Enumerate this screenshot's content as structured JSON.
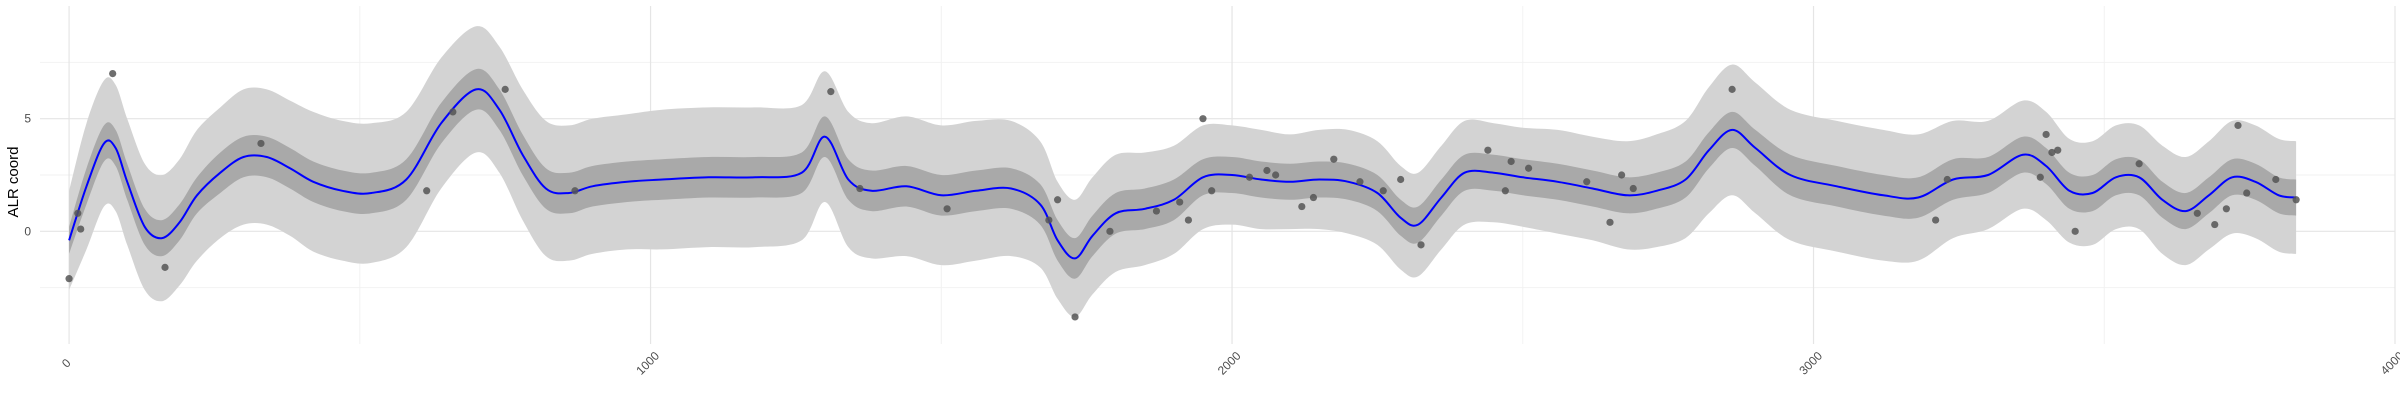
{
  "chart_data": {
    "type": "line",
    "title": "",
    "xlabel": "",
    "ylabel": "ALR coord",
    "xlim": [
      -50,
      4000
    ],
    "ylim": [
      -5,
      10
    ],
    "x_ticks": [
      0,
      1000,
      2000,
      3000,
      4000
    ],
    "x_tick_labels": [
      "0",
      "1000",
      "2000",
      "3000",
      "4000"
    ],
    "y_ticks": [
      0,
      5
    ],
    "y_tick_labels": [
      "0",
      "5"
    ],
    "grid": true,
    "colors": {
      "line": "#0000ff",
      "inner_band": "#a9a9a9",
      "outer_band": "#d3d3d3",
      "points": "#555555",
      "grid_major": "#e5e5e5",
      "grid_minor": "#f2f2f2"
    },
    "series": [
      {
        "kind": "mean",
        "x": [
          0,
          30,
          60,
          80,
          100,
          130,
          160,
          190,
          220,
          260,
          300,
          340,
          380,
          420,
          470,
          520,
          580,
          640,
          700,
          740,
          780,
          820,
          860,
          900,
          960,
          1020,
          1100,
          1180,
          1260,
          1300,
          1340,
          1380,
          1440,
          1500,
          1560,
          1620,
          1670,
          1700,
          1730,
          1760,
          1800,
          1850,
          1900,
          1950,
          2000,
          2050,
          2100,
          2150,
          2200,
          2250,
          2290,
          2320,
          2360,
          2400,
          2450,
          2500,
          2560,
          2620,
          2680,
          2730,
          2780,
          2820,
          2860,
          2900,
          2960,
          3040,
          3120,
          3180,
          3240,
          3300,
          3360,
          3400,
          3440,
          3480,
          3520,
          3560,
          3600,
          3640,
          3680,
          3720,
          3760,
          3800,
          3830
        ],
        "y": [
          -0.4,
          2.0,
          3.9,
          3.7,
          2.2,
          0.2,
          -0.3,
          0.4,
          1.6,
          2.6,
          3.3,
          3.3,
          2.8,
          2.2,
          1.8,
          1.7,
          2.3,
          4.8,
          6.3,
          5.4,
          3.4,
          1.9,
          1.7,
          2.0,
          2.2,
          2.3,
          2.4,
          2.4,
          2.6,
          4.2,
          2.3,
          1.8,
          2.0,
          1.6,
          1.8,
          1.9,
          1.2,
          -0.4,
          -1.2,
          -0.2,
          0.8,
          1.0,
          1.4,
          2.4,
          2.5,
          2.3,
          2.2,
          2.3,
          2.2,
          1.7,
          0.6,
          0.3,
          1.5,
          2.6,
          2.6,
          2.4,
          2.2,
          1.9,
          1.6,
          1.8,
          2.3,
          3.6,
          4.5,
          3.7,
          2.5,
          2.0,
          1.6,
          1.5,
          2.3,
          2.5,
          3.4,
          2.9,
          1.8,
          1.7,
          2.4,
          2.4,
          1.4,
          0.9,
          1.6,
          2.4,
          2.2,
          1.6,
          1.5
        ],
        "inner_band_halfwidth": [
          0.6,
          0.8,
          0.8,
          0.8,
          0.8,
          0.8,
          0.8,
          0.8,
          0.8,
          0.9,
          0.9,
          0.9,
          0.9,
          0.9,
          0.9,
          0.9,
          0.9,
          0.9,
          0.9,
          0.9,
          0.9,
          0.9,
          0.9,
          0.9,
          0.9,
          0.9,
          0.9,
          0.9,
          0.9,
          0.9,
          0.9,
          0.9,
          0.9,
          0.9,
          0.9,
          0.9,
          0.9,
          0.9,
          0.9,
          0.9,
          0.9,
          0.9,
          0.9,
          0.8,
          0.8,
          0.8,
          0.8,
          0.8,
          0.8,
          0.8,
          0.8,
          0.8,
          0.8,
          0.8,
          0.8,
          0.8,
          0.8,
          0.8,
          0.8,
          0.8,
          0.8,
          0.8,
          0.8,
          0.8,
          0.9,
          0.9,
          0.9,
          0.9,
          0.9,
          0.8,
          0.8,
          0.8,
          0.8,
          0.8,
          0.8,
          0.8,
          0.8,
          0.8,
          0.8,
          0.8,
          0.8,
          0.8,
          0.8
        ],
        "outer_band_halfwidth": [
          2.2,
          2.8,
          2.8,
          2.8,
          2.8,
          2.8,
          2.8,
          2.8,
          2.9,
          2.9,
          3.0,
          3.0,
          3.0,
          3.1,
          3.1,
          3.1,
          3.0,
          2.9,
          2.8,
          2.8,
          2.9,
          3.0,
          3.0,
          3.0,
          3.0,
          3.1,
          3.1,
          3.1,
          3.0,
          2.9,
          3.0,
          3.0,
          3.1,
          3.1,
          3.1,
          3.0,
          2.8,
          2.6,
          2.6,
          2.6,
          2.6,
          2.5,
          2.4,
          2.3,
          2.2,
          2.2,
          2.1,
          2.2,
          2.3,
          2.3,
          2.3,
          2.3,
          2.3,
          2.3,
          2.2,
          2.2,
          2.3,
          2.3,
          2.4,
          2.5,
          2.6,
          2.8,
          2.9,
          2.9,
          2.9,
          2.9,
          2.9,
          2.8,
          2.6,
          2.4,
          2.4,
          2.4,
          2.3,
          2.3,
          2.3,
          2.3,
          2.4,
          2.4,
          2.4,
          2.5,
          2.5,
          2.5,
          2.5
        ]
      },
      {
        "kind": "observations",
        "x": [
          0,
          15,
          20,
          75,
          165,
          330,
          615,
          660,
          750,
          870,
          1310,
          1360,
          1510,
          1685,
          1700,
          1730,
          1790,
          1870,
          1910,
          1925,
          1950,
          1965,
          2030,
          2060,
          2075,
          2120,
          2140,
          2175,
          2220,
          2260,
          2290,
          2325,
          2440,
          2470,
          2480,
          2510,
          2610,
          2650,
          2670,
          2690,
          2860,
          3210,
          3230,
          3390,
          3400,
          3410,
          3420,
          3450,
          3560,
          3660,
          3690,
          3710,
          3730,
          3745,
          3795,
          3830
        ],
        "y": [
          -2.1,
          0.8,
          0.1,
          7.0,
          -1.6,
          3.9,
          1.8,
          5.3,
          6.3,
          1.8,
          6.2,
          1.9,
          1.0,
          0.5,
          1.4,
          -3.8,
          0.0,
          0.9,
          1.3,
          0.5,
          5.0,
          1.8,
          2.4,
          2.7,
          2.5,
          1.1,
          1.5,
          3.2,
          2.2,
          1.8,
          2.3,
          -0.6,
          3.6,
          1.8,
          3.1,
          2.8,
          2.2,
          0.4,
          2.5,
          1.9,
          6.3,
          0.5,
          2.3,
          2.4,
          4.3,
          3.5,
          3.6,
          0.0,
          3.0,
          0.8,
          0.3,
          1.0,
          4.7,
          1.7,
          2.3,
          1.4
        ]
      }
    ]
  }
}
